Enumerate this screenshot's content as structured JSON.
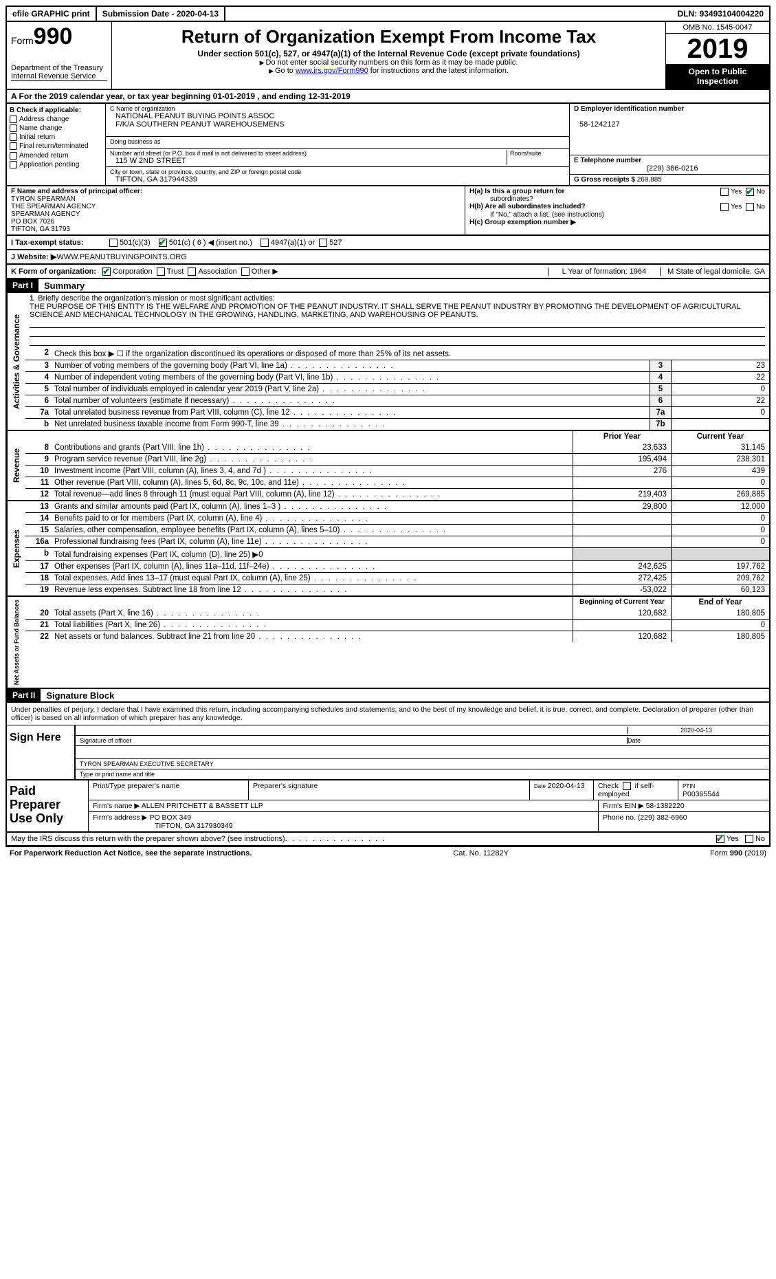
{
  "topbar": {
    "efile": "efile GRAPHIC print",
    "subdate_lbl": "Submission Date - ",
    "subdate": "2020-04-13",
    "dln_lbl": "DLN: ",
    "dln": "93493104004220"
  },
  "header": {
    "form_word": "Form",
    "form_num": "990",
    "dept1": "Department of the Treasury",
    "dept2": "Internal Revenue Service",
    "title": "Return of Organization Exempt From Income Tax",
    "sub": "Under section 501(c), 527, or 4947(a)(1) of the Internal Revenue Code (except private foundations)",
    "line1": "Do not enter social security numbers on this form as it may be made public.",
    "line2a": "Go to ",
    "line2b": "www.irs.gov/Form990",
    "line2c": " for instructions and the latest information.",
    "omb": "OMB No. 1545-0047",
    "year": "2019",
    "opentopublic": "Open to Public Inspection"
  },
  "rowA": "A For the 2019 calendar year, or tax year beginning 01-01-2019   , and ending 12-31-2019",
  "colB": {
    "title": "B Check if applicable:",
    "opts": [
      "Address change",
      "Name change",
      "Initial return",
      "Final return/terminated",
      "Amended return",
      "Application pending"
    ]
  },
  "colC": {
    "name_lbl": "C Name of organization",
    "name1": "NATIONAL PEANUT BUYING POINTS ASSOC",
    "name2": "F/K/A SOUTHERN PEANUT WAREHOUSEMENS",
    "dba_lbl": "Doing business as",
    "street_lbl": "Number and street (or P.O. box if mail is not delivered to street address)",
    "street": "115 W 2ND STREET",
    "suite_lbl": "Room/suite",
    "city_lbl": "City or town, state or province, country, and ZIP or foreign postal code",
    "city": "TIFTON, GA  317944339"
  },
  "colD": {
    "ein_lbl": "D Employer identification number",
    "ein": "58-1242127",
    "tel_lbl": "E Telephone number",
    "tel": "(229) 386-0216",
    "gross_lbl": "G Gross receipts $ ",
    "gross": "269,885"
  },
  "colF": {
    "lbl": "F  Name and address of principal officer:",
    "l1": "TYRON SPEARMAN",
    "l2": "THE SPEARMAN AGENCY",
    "l3": "SPEARMAN AGENCY",
    "l4": "PO BOX 7026",
    "l5": "TIFTON, GA  31793"
  },
  "colH": {
    "ha1": "H(a)  Is this a group return for",
    "ha2": "subordinates?",
    "hb1": "H(b)  Are all subordinates included?",
    "hb2": "If \"No,\" attach a list. (see instructions)",
    "hc": "H(c)  Group exemption number ▶",
    "yes": "Yes",
    "no": "No"
  },
  "lineI": {
    "lbl": "I    Tax-exempt status:",
    "o1": "501(c)(3)",
    "o2": "501(c) ( 6 ) ◀ (insert no.)",
    "o3": "4947(a)(1) or",
    "o4": "527"
  },
  "lineJ": {
    "lbl": "J   Website: ▶",
    "val": " WWW.PEANUTBUYINGPOINTS.ORG"
  },
  "lineK": {
    "lbl": "K Form of organization:",
    "o1": "Corporation",
    "o2": "Trust",
    "o3": "Association",
    "o4": "Other ▶",
    "L": "L Year of formation: 1964",
    "M": "M State of legal domicile: GA"
  },
  "part1": {
    "hdr": "Part I",
    "title": "Summary"
  },
  "mission": {
    "num": "1",
    "lbl": "Briefly describe the organization's mission or most significant activities:",
    "text": "THE PURPOSE OF THIS ENTITY IS THE WELFARE AND PROMOTION OF THE PEANUT INDUSTRY. IT SHALL SERVE THE PEANUT INDUSTRY BY PROMOTING THE DEVELOPMENT OF AGRICULTURAL SCIENCE AND MECHANICAL TECHNOLOGY IN THE GROWING, HANDLING, MARKETING, AND WAREHOUSING OF PEANUTS."
  },
  "gov_rows": [
    {
      "n": "2",
      "d": "Check this box ▶ ☐ if the organization discontinued its operations or disposed of more than 25% of its net assets.",
      "box": "",
      "v": ""
    },
    {
      "n": "3",
      "d": "Number of voting members of the governing body (Part VI, line 1a)",
      "box": "3",
      "v": "23"
    },
    {
      "n": "4",
      "d": "Number of independent voting members of the governing body (Part VI, line 1b)",
      "box": "4",
      "v": "22"
    },
    {
      "n": "5",
      "d": "Total number of individuals employed in calendar year 2019 (Part V, line 2a)",
      "box": "5",
      "v": "0"
    },
    {
      "n": "6",
      "d": "Total number of volunteers (estimate if necessary)",
      "box": "6",
      "v": "22"
    },
    {
      "n": "7a",
      "d": "Total unrelated business revenue from Part VIII, column (C), line 12",
      "box": "7a",
      "v": "0"
    },
    {
      "n": "b",
      "d": "Net unrelated business taxable income from Form 990-T, line 39",
      "box": "7b",
      "v": ""
    }
  ],
  "two_col_hdr": {
    "prior": "Prior Year",
    "current": "Current Year"
  },
  "revenue": [
    {
      "n": "8",
      "d": "Contributions and grants (Part VIII, line 1h)",
      "p": "23,633",
      "c": "31,145"
    },
    {
      "n": "9",
      "d": "Program service revenue (Part VIII, line 2g)",
      "p": "195,494",
      "c": "238,301"
    },
    {
      "n": "10",
      "d": "Investment income (Part VIII, column (A), lines 3, 4, and 7d )",
      "p": "276",
      "c": "439"
    },
    {
      "n": "11",
      "d": "Other revenue (Part VIII, column (A), lines 5, 6d, 8c, 9c, 10c, and 11e)",
      "p": "",
      "c": "0"
    },
    {
      "n": "12",
      "d": "Total revenue—add lines 8 through 11 (must equal Part VIII, column (A), line 12)",
      "p": "219,403",
      "c": "269,885"
    }
  ],
  "expenses": [
    {
      "n": "13",
      "d": "Grants and similar amounts paid (Part IX, column (A), lines 1–3 )",
      "p": "29,800",
      "c": "12,000"
    },
    {
      "n": "14",
      "d": "Benefits paid to or for members (Part IX, column (A), line 4)",
      "p": "",
      "c": "0"
    },
    {
      "n": "15",
      "d": "Salaries, other compensation, employee benefits (Part IX, column (A), lines 5–10)",
      "p": "",
      "c": "0"
    },
    {
      "n": "16a",
      "d": "Professional fundraising fees (Part IX, column (A), line 11e)",
      "p": "",
      "c": "0"
    },
    {
      "n": "b",
      "d": "Total fundraising expenses (Part IX, column (D), line 25) ▶0",
      "p": "shade",
      "c": "shade"
    },
    {
      "n": "17",
      "d": "Other expenses (Part IX, column (A), lines 11a–11d, 11f–24e)",
      "p": "242,625",
      "c": "197,762"
    },
    {
      "n": "18",
      "d": "Total expenses. Add lines 13–17 (must equal Part IX, column (A), line 25)",
      "p": "272,425",
      "c": "209,762"
    },
    {
      "n": "19",
      "d": "Revenue less expenses. Subtract line 18 from line 12",
      "p": "-53,022",
      "c": "60,123"
    }
  ],
  "net_hdr": {
    "begin": "Beginning of Current Year",
    "end": "End of Year"
  },
  "netassets": [
    {
      "n": "20",
      "d": "Total assets (Part X, line 16)",
      "p": "120,682",
      "c": "180,805"
    },
    {
      "n": "21",
      "d": "Total liabilities (Part X, line 26)",
      "p": "",
      "c": "0"
    },
    {
      "n": "22",
      "d": "Net assets or fund balances. Subtract line 21 from line 20",
      "p": "120,682",
      "c": "180,805"
    }
  ],
  "sidelabels": {
    "gov": "Activities & Governance",
    "rev": "Revenue",
    "exp": "Expenses",
    "net": "Net Assets or Fund Balances"
  },
  "part2": {
    "hdr": "Part II",
    "title": "Signature Block",
    "text": "Under penalties of perjury, I declare that I have examined this return, including accompanying schedules and statements, and to the best of my knowledge and belief, it is true, correct, and complete. Declaration of preparer (other than officer) is based on all information of which preparer has any knowledge."
  },
  "sign": {
    "lbl": "Sign Here",
    "sig_lbl": "Signature of officer",
    "date": "2020-04-13",
    "date_lbl": "Date",
    "name": "TYRON SPEARMAN EXECUTIVE SECRETARY",
    "name_lbl": "Type or print name and title"
  },
  "paid": {
    "lbl": "Paid Preparer Use Only",
    "h1": "Print/Type preparer's name",
    "h2": "Preparer's signature",
    "h3_lbl": "Date",
    "h3": "2020-04-13",
    "h4a": "Check",
    "h4b": "if self-employed",
    "h5_lbl": "PTIN",
    "h5": "P00365544",
    "firm_name_lbl": "Firm's name      ▶",
    "firm_name": "ALLEN PRITCHETT & BASSETT LLP",
    "firm_ein_lbl": "Firm's EIN ▶",
    "firm_ein": "58-1382220",
    "firm_addr_lbl": "Firm's address ▶",
    "firm_addr1": "PO BOX 349",
    "firm_addr2": "TIFTON, GA  317930349",
    "phone_lbl": "Phone no.",
    "phone": "(229) 382-6960"
  },
  "discuss": {
    "text": "May the IRS discuss this return with the preparer shown above? (see instructions)",
    "yes": "Yes",
    "no": "No"
  },
  "footer": {
    "left": "For Paperwork Reduction Act Notice, see the separate instructions.",
    "mid": "Cat. No. 11282Y",
    "right": "Form 990 (2019)"
  },
  "colors": {
    "check_green": "#0a802e",
    "link_blue": "#0b0bc4",
    "shade": "#d9d9d9"
  }
}
